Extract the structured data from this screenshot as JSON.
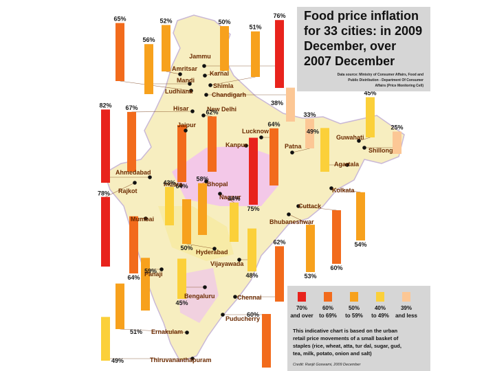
{
  "chart_data": {
    "type": "bar",
    "title": "Food price inflation for 33 cities: in 2009 December, over 2007 December",
    "title_lines": [
      "Food price inflation",
      "for 33 cities: in 2009",
      "December, over",
      "2007 December"
    ],
    "source_lines": [
      "Data source: Ministry of Consumer Affairs, Food and",
      "Public Distribution - Department Of Consumer",
      "Affairs (Price Monitoring Cell)"
    ],
    "categories": [
      "Jammu",
      "Amritsar",
      "Karnal",
      "Mandi",
      "Shimla",
      "Ludhiana",
      "Chandigarh",
      "Hisar",
      "New Delhi",
      "Jaipur",
      "Lucknow",
      "Kanpur",
      "Patna",
      "Guwahati",
      "Shillong",
      "Agartala",
      "Ahmedabad",
      "Rajkot",
      "Indore",
      "Bhopal",
      "Nagpur",
      "Kolkata",
      "Mumbai",
      "Cuttack",
      "Bhubaneshwar",
      "Hyderabad",
      "Vijayawada",
      "Panaji",
      "Bengaluru",
      "Chennai",
      "Puducherry",
      "Ernakulam",
      "Thiruvananthapuram"
    ],
    "values": [
      76,
      52,
      50,
      56,
      51,
      65,
      38,
      67,
      62,
      64,
      64,
      75,
      33,
      45,
      25,
      49,
      82,
      78,
      43,
      58,
      44,
      54,
      64,
      60,
      53,
      50,
      48,
      59,
      45,
      62,
      60,
      51,
      49
    ],
    "value_labels": [
      "76%",
      "52%",
      "50%",
      "56%",
      "51%",
      "65%",
      "38%",
      "67%",
      "62%",
      "64%",
      "64%",
      "75%",
      "33%",
      "45%",
      "25%",
      "49%",
      "82%",
      "78%",
      "43%",
      "58%",
      "44%",
      "54%",
      "64%",
      "60%",
      "53%",
      "50%",
      "48%",
      "59%",
      "45%",
      "62%",
      "60%",
      "51%",
      "49%"
    ],
    "unit": "%",
    "legend": {
      "items": [
        {
          "line1": "70%",
          "line2": "and over",
          "color": "#e8231c"
        },
        {
          "line1": "60%",
          "line2": "to 69%",
          "color": "#f26b1c"
        },
        {
          "line1": "50%",
          "line2": "to 59%",
          "color": "#f7a11d"
        },
        {
          "line1": "40%",
          "line2": "to 49%",
          "color": "#fbd03a"
        },
        {
          "line1": "39%",
          "line2": "and less",
          "color": "#fcc795"
        }
      ]
    },
    "note_lines": [
      "This indicative chart is based on the urban",
      "retail price movements of a small basket of",
      "staples (rice, wheat, atta, tur dal, sugar, gud,",
      "tea, milk, potato, onion and salt)"
    ],
    "credit": "Credit: Ranjit Goswami, 2009 December"
  }
}
